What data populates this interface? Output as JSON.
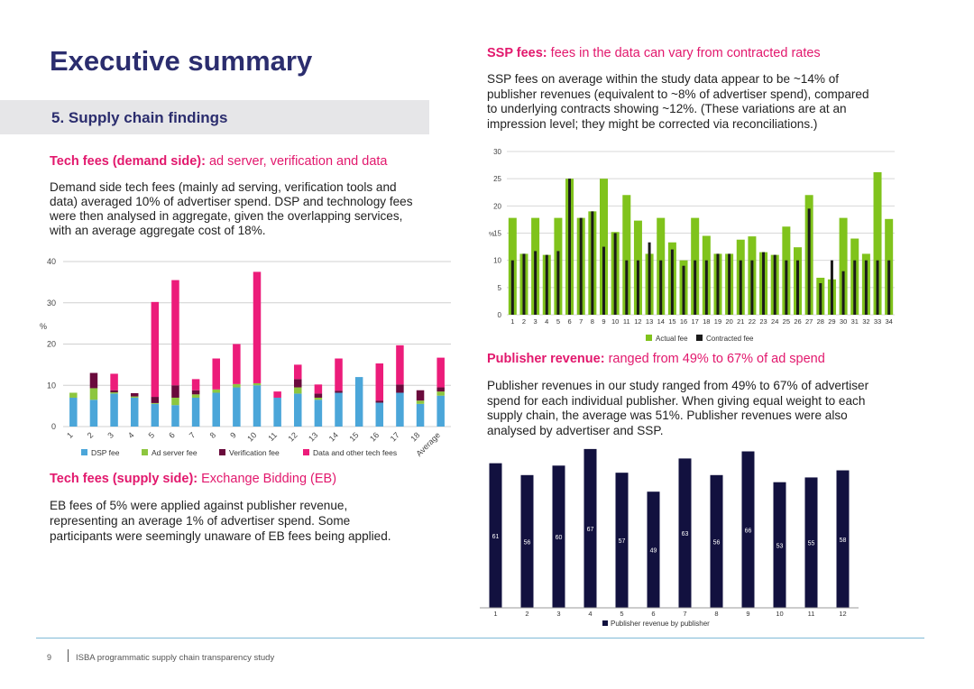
{
  "page": {
    "title": "Executive summary",
    "section": "5. Supply chain findings",
    "footer_page": "9",
    "footer_text": "ISBA programmatic supply chain transparency study"
  },
  "tech_demand": {
    "heading_bold": "Tech fees (demand side):",
    "heading_rest": " ad server, verification and data",
    "lines": [
      "Demand side tech fees (mainly ad serving, verification tools and",
      "data) averaged 10% of advertiser spend. DSP and technology fees",
      "were then analysed in aggregate, given the overlapping services,",
      "with an average aggregate cost of 18%."
    ]
  },
  "tech_supply": {
    "heading_bold": "Tech fees (supply side):",
    "heading_rest": " Exchange Bidding (EB)",
    "lines": [
      "EB fees of 5% were applied against publisher revenue,",
      "representing an average 1% of advertiser spend. Some",
      "participants were seemingly unaware of EB fees being applied."
    ]
  },
  "ssp": {
    "heading_bold": "SSP fees:",
    "heading_rest": " fees in the data can vary from contracted rates",
    "lines": [
      "SSP fees on average within the study data appear to be ~14% of",
      "publisher revenues (equivalent to ~8% of advertiser spend), compared",
      "to underlying contracts showing ~12%. (These variations are at an",
      "impression level; they might be corrected via reconciliations.)"
    ]
  },
  "publisher": {
    "heading_bold": "Publisher revenue:",
    "heading_rest": " ranged from 49% to 67% of ad spend",
    "lines": [
      "Publisher revenues in our study ranged from 49% to 67% of advertiser",
      "spend for each individual publisher. When giving equal weight to each",
      "supply chain, the average was 51%. Publisher revenues were also",
      "analysed by advertiser and SSP."
    ]
  },
  "colors": {
    "dsp": "#4ba6d9",
    "adserver": "#8dc63f",
    "verification": "#6a0a3c",
    "data": "#ec1c7a",
    "actual": "#80c31c",
    "contracted": "#1a1a1a",
    "publisher": "#12113f"
  },
  "chart_data": [
    {
      "type": "bar",
      "stacked": true,
      "ylabel": "%",
      "ylim": [
        0,
        40
      ],
      "yticks": [
        "0",
        "10",
        "20",
        "30",
        "40"
      ],
      "categories": [
        "1",
        "2",
        "3",
        "4",
        "5",
        "6",
        "7",
        "8",
        "9",
        "10",
        "11",
        "12",
        "13",
        "14",
        "15",
        "16",
        "17",
        "18",
        "Average"
      ],
      "series": [
        {
          "name": "DSP fee",
          "values": [
            7.0,
            6.5,
            8.0,
            7.0,
            5.5,
            5.2,
            7.0,
            8.2,
            9.5,
            10.0,
            7.0,
            8.0,
            6.5,
            8.2,
            12.0,
            5.8,
            8.2,
            5.5,
            7.5
          ]
        },
        {
          "name": "Ad server fee",
          "values": [
            1.2,
            2.8,
            0.3,
            0.3,
            0.2,
            1.8,
            0.8,
            0.8,
            0.8,
            0.5,
            0.0,
            1.5,
            0.5,
            0.0,
            0.0,
            0.0,
            0.0,
            0.8,
            1.0
          ]
        },
        {
          "name": "Verification fee",
          "values": [
            0.0,
            3.7,
            0.5,
            0.8,
            1.5,
            3.0,
            1.0,
            0.0,
            0.0,
            0.0,
            0.0,
            2.0,
            1.0,
            0.5,
            0.0,
            0.5,
            2.0,
            2.5,
            1.0
          ]
        },
        {
          "name": "Data and other tech fees",
          "values": [
            0.0,
            0.0,
            4.0,
            0.0,
            23.0,
            25.5,
            2.7,
            7.5,
            9.7,
            27.0,
            1.5,
            3.5,
            2.2,
            7.8,
            0.0,
            9.0,
            9.5,
            0.0,
            7.2
          ]
        }
      ]
    },
    {
      "type": "bar",
      "ylabel": "%",
      "ylim": [
        0,
        30
      ],
      "yticks": [
        "0",
        "5",
        "10",
        "15",
        "20",
        "25",
        "30"
      ],
      "categories": [
        "1",
        "2",
        "3",
        "4",
        "5",
        "6",
        "7",
        "8",
        "9",
        "10",
        "11",
        "12",
        "13",
        "14",
        "15",
        "16",
        "17",
        "18",
        "19",
        "20",
        "21",
        "22",
        "23",
        "24",
        "25",
        "26",
        "27",
        "28",
        "29",
        "30",
        "31",
        "32",
        "33",
        "34"
      ],
      "series": [
        {
          "name": "Actual fee",
          "values": [
            17.8,
            11.2,
            17.8,
            11.0,
            17.8,
            25.0,
            17.8,
            19.0,
            25.0,
            15.2,
            22.0,
            17.3,
            11.2,
            17.8,
            13.3,
            10.0,
            17.8,
            14.5,
            11.2,
            11.2,
            13.8,
            14.4,
            11.5,
            11.0,
            16.2,
            12.4,
            22.0,
            6.8,
            6.5,
            17.8,
            14.0,
            11.2,
            26.2,
            17.6
          ]
        },
        {
          "name": "Contracted fee",
          "values": [
            10.0,
            11.2,
            11.7,
            11.0,
            11.7,
            25.0,
            17.8,
            19.0,
            12.5,
            15.0,
            10.0,
            10.0,
            13.3,
            10.0,
            12.0,
            9.0,
            10.0,
            10.0,
            11.2,
            11.2,
            10.0,
            10.0,
            11.5,
            11.0,
            10.0,
            10.0,
            19.5,
            5.8,
            10.0,
            8.0,
            10.0,
            10.0,
            10.0,
            10.0
          ]
        }
      ]
    },
    {
      "type": "bar",
      "ylim": [
        0,
        70
      ],
      "categories": [
        "1",
        "2",
        "3",
        "4",
        "5",
        "6",
        "7",
        "8",
        "9",
        "10",
        "11",
        "12"
      ],
      "series": [
        {
          "name": "Publisher revenue by publisher",
          "values": [
            61,
            56,
            60,
            67,
            57,
            49,
            63,
            56,
            66,
            53,
            55,
            58
          ]
        }
      ]
    }
  ]
}
